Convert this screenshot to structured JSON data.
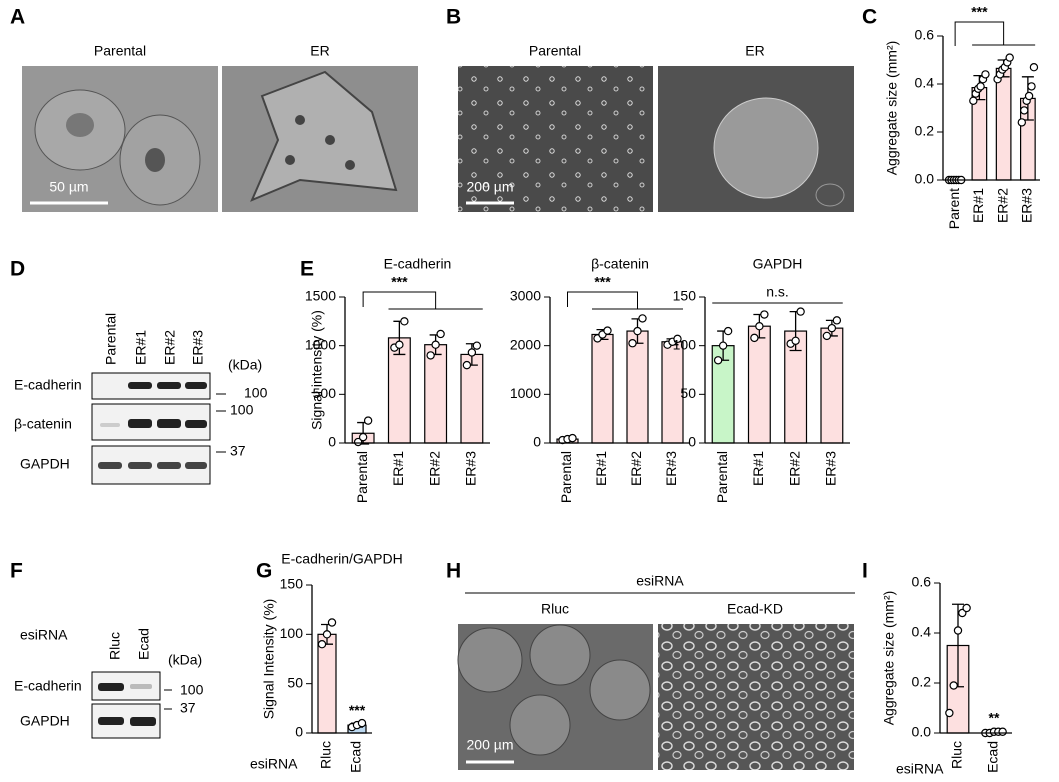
{
  "panels": {
    "A": {
      "label": "A",
      "images": [
        "Parental",
        "ER"
      ],
      "scale_bar": "50 µm"
    },
    "B": {
      "label": "B",
      "images": [
        "Parental",
        "ER"
      ],
      "scale_bar": "200 µm"
    },
    "C": {
      "label": "C"
    },
    "D": {
      "label": "D",
      "lanes": [
        "Parental",
        "ER#1",
        "ER#2",
        "ER#3"
      ],
      "unit": "(kDa)",
      "rows": [
        "E-cadherin",
        "β-catenin",
        "GAPDH"
      ],
      "markers": [
        100,
        100,
        37
      ]
    },
    "E": {
      "label": "E"
    },
    "F": {
      "label": "F",
      "group": "esiRNA",
      "lanes": [
        "Rluc",
        "Ecad"
      ],
      "unit": "(kDa)",
      "rows": [
        "E-cadherin",
        "GAPDH"
      ],
      "markers": [
        100,
        37
      ]
    },
    "G": {
      "label": "G"
    },
    "H": {
      "label": "H",
      "group": "esiRNA",
      "images": [
        "Rluc",
        "Ecad-KD"
      ],
      "scale_bar": "200 µm"
    },
    "I": {
      "label": "I"
    }
  },
  "chart_data": [
    {
      "type": "bar",
      "y_label": "Aggregate size (mm²)",
      "categories": [
        "Parent",
        "ER#1",
        "ER#2",
        "ER#3"
      ],
      "values": [
        0.002,
        0.385,
        0.465,
        0.34
      ],
      "errors": [
        0.003,
        0.05,
        0.035,
        0.09
      ],
      "points": [
        [
          0,
          0,
          0,
          0,
          0,
          0
        ],
        [
          0.33,
          0.36,
          0.38,
          0.39,
          0.42,
          0.44
        ],
        [
          0.42,
          0.44,
          0.46,
          0.47,
          0.49,
          0.51
        ],
        [
          0.24,
          0.29,
          0.33,
          0.35,
          0.39,
          0.47
        ]
      ],
      "colors": [
        "#fde0e0",
        "#fde0e0",
        "#fde0e0",
        "#fde0e0"
      ],
      "ylim": [
        0,
        0.6
      ],
      "yticks": [
        {
          "value": 0,
          "label": "0.0"
        },
        0.2,
        0.4,
        0.6
      ],
      "annotation": "***"
    },
    {
      "type": "bar",
      "title": "E-cadherin",
      "y_label": "Signal intensity (%)",
      "categories": [
        "Parental",
        "ER#1",
        "ER#2",
        "ER#3"
      ],
      "values": [
        100,
        1080,
        1010,
        910
      ],
      "errors": [
        110,
        170,
        100,
        110
      ],
      "points": [
        [
          10,
          60,
          230
        ],
        [
          980,
          1010,
          1250
        ],
        [
          900,
          1010,
          1120
        ],
        [
          800,
          930,
          1000
        ]
      ],
      "colors": [
        "#fde0e0",
        "#fde0e0",
        "#fde0e0",
        "#fde0e0"
      ],
      "ylim": [
        0,
        1500
      ],
      "yticks": [
        0,
        500,
        1000,
        1500
      ],
      "annotation": "***"
    },
    {
      "type": "bar",
      "title": "β-catenin",
      "categories": [
        "Parental",
        "ER#1",
        "ER#2",
        "ER#3"
      ],
      "values": [
        80,
        2230,
        2300,
        2080
      ],
      "errors": [
        30,
        100,
        250,
        60
      ],
      "points": [
        [
          60,
          80,
          100
        ],
        [
          2150,
          2230,
          2310
        ],
        [
          2050,
          2300,
          2560
        ],
        [
          2020,
          2080,
          2140
        ]
      ],
      "colors": [
        "#fde0e0",
        "#fde0e0",
        "#fde0e0",
        "#fde0e0"
      ],
      "ylim": [
        0,
        3000
      ],
      "yticks": [
        0,
        1000,
        2000,
        3000
      ],
      "annotation": "***"
    },
    {
      "type": "bar",
      "title": "GAPDH",
      "categories": [
        "Parental",
        "ER#1",
        "ER#2",
        "ER#3"
      ],
      "values": [
        100,
        120,
        115,
        118
      ],
      "errors": [
        15,
        12,
        20,
        8
      ],
      "points": [
        [
          85,
          100,
          115
        ],
        [
          108,
          120,
          132
        ],
        [
          102,
          105,
          135
        ],
        [
          110,
          118,
          126
        ]
      ],
      "colors": [
        "#c8f5c8",
        "#fde0e0",
        "#fde0e0",
        "#fde0e0"
      ],
      "ylim": [
        0,
        150
      ],
      "yticks": [
        0,
        50,
        100,
        150
      ],
      "annotation": "n.s."
    },
    {
      "type": "bar",
      "title": "E-cadherin/GAPDH",
      "y_label": "Signal Intensity (%)",
      "x_label": "esiRNA",
      "categories": [
        "Rluc",
        "Ecad"
      ],
      "values": [
        100,
        8
      ],
      "errors": [
        10,
        2
      ],
      "points": [
        [
          90,
          100,
          112
        ],
        [
          6,
          8,
          10
        ]
      ],
      "colors": [
        "#fde0e0",
        "#bcd8f0"
      ],
      "ylim": [
        0,
        150
      ],
      "yticks": [
        0,
        50,
        100,
        150
      ],
      "annotation": "***"
    },
    {
      "type": "bar",
      "y_label": "Aggregate size (mm²)",
      "x_label": "esiRNA",
      "categories": [
        "Rluc",
        "Ecad"
      ],
      "values": [
        0.35,
        0.005
      ],
      "errors": [
        0.165,
        0.003
      ],
      "points": [
        [
          0.08,
          0.19,
          0.41,
          0.48,
          0.5
        ],
        [
          0,
          0,
          0.005,
          0.005,
          0.005
        ]
      ],
      "colors": [
        "#fde0e0",
        "#bcd8f0"
      ],
      "ylim": [
        0,
        0.6
      ],
      "yticks": [
        {
          "value": 0,
          "label": "0.0"
        },
        0.2,
        0.4,
        0.6
      ],
      "annotation": "**"
    }
  ]
}
